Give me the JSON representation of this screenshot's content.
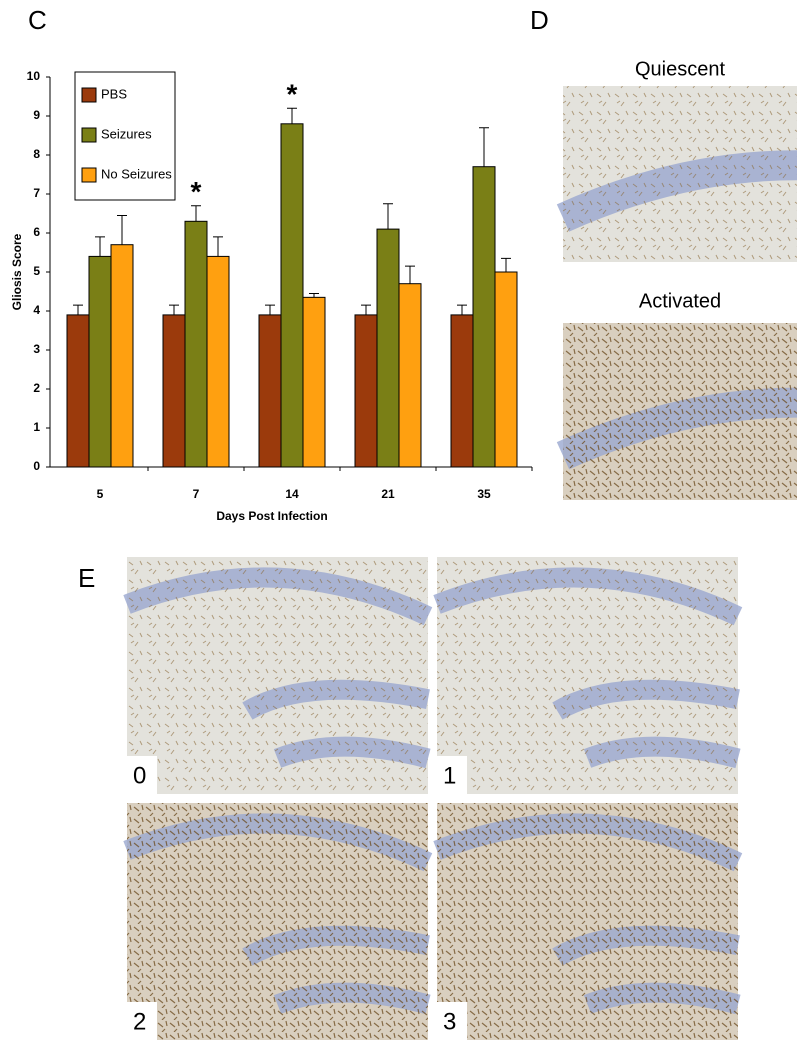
{
  "labels": {
    "c": "C",
    "d": "D",
    "e": "E"
  },
  "chart_data": {
    "type": "bar",
    "x_label": "Days Post Infection",
    "y_label": "Gliosis Score",
    "categories": [
      "5",
      "7",
      "14",
      "21",
      "35"
    ],
    "series": [
      {
        "name": "PBS",
        "color": "#9b3a0c",
        "values": [
          3.9,
          3.9,
          3.9,
          3.9,
          3.9
        ],
        "errors": [
          0.25,
          0.25,
          0.25,
          0.25,
          0.25
        ]
      },
      {
        "name": "Seizures",
        "color": "#7a7f16",
        "values": [
          5.4,
          6.3,
          8.8,
          6.1,
          7.7
        ],
        "errors": [
          0.5,
          0.4,
          0.4,
          0.65,
          1.0
        ]
      },
      {
        "name": "No Seizures",
        "color": "#ffa010",
        "values": [
          5.7,
          5.4,
          4.35,
          4.7,
          5.0
        ],
        "errors": [
          0.75,
          0.5,
          0.1,
          0.45,
          0.35
        ]
      }
    ],
    "significance": [
      null,
      "*",
      "*",
      null,
      null
    ],
    "ylim": [
      0,
      10
    ],
    "yticks": [
      0,
      1,
      2,
      3,
      4,
      5,
      6,
      7,
      8,
      9,
      10
    ],
    "legend": "upper left"
  },
  "micrographs_d": [
    {
      "label": "Quiescent"
    },
    {
      "label": "Activated"
    }
  ],
  "micrographs_e": [
    {
      "label": "0"
    },
    {
      "label": "1"
    },
    {
      "label": "2"
    },
    {
      "label": "3"
    }
  ]
}
